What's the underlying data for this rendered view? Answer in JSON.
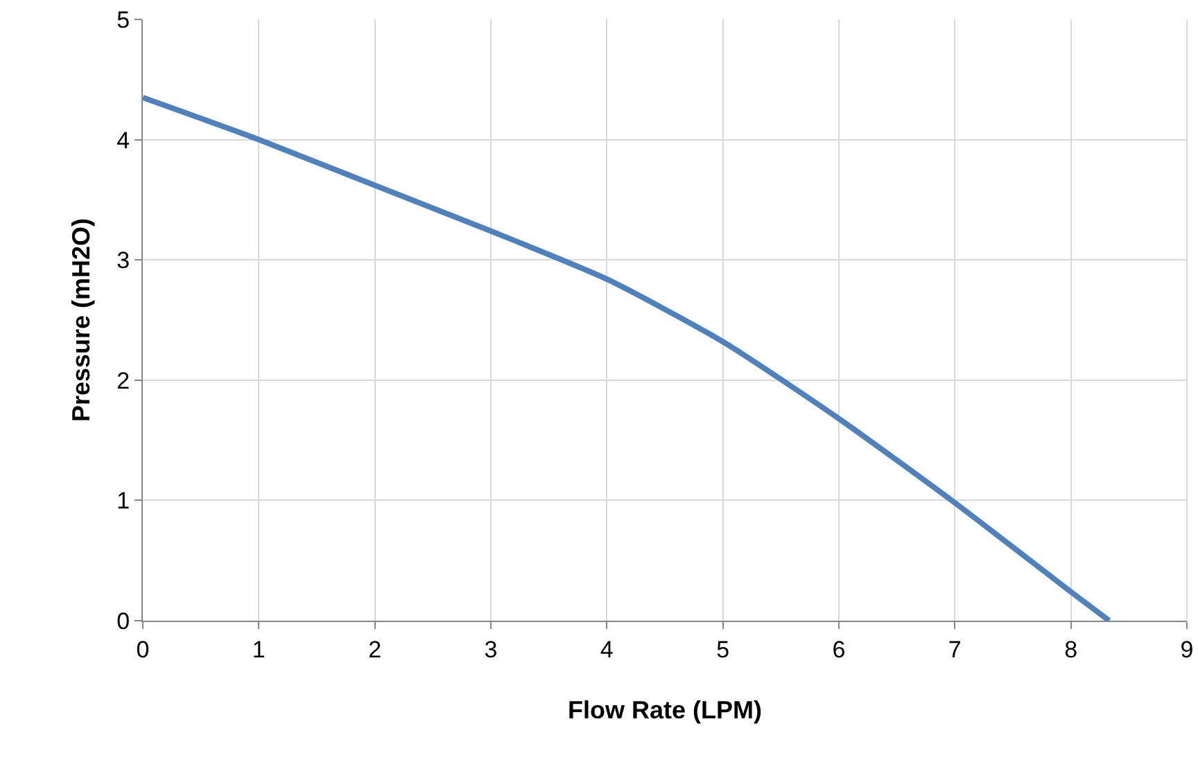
{
  "chart_data": {
    "type": "line",
    "xlabel": "Flow Rate (LPM)",
    "ylabel": "Pressure (mH2O)",
    "x": [
      0,
      1,
      2,
      3,
      4,
      5,
      6,
      7,
      8,
      8.33
    ],
    "series": [
      {
        "color": "#4f81bd",
        "values": [
          4.35,
          4.0,
          3.62,
          3.24,
          2.84,
          2.32,
          1.68,
          0.98,
          0.24,
          0
        ]
      }
    ],
    "xlim": [
      0,
      9
    ],
    "xticks": [
      0,
      1,
      2,
      3,
      4,
      5,
      6,
      7,
      8,
      9
    ],
    "ylim": [
      0,
      5
    ],
    "yticks": [
      0,
      1,
      2,
      3,
      4,
      5
    ],
    "grid": true,
    "marker": "none",
    "line_style": "solid"
  }
}
